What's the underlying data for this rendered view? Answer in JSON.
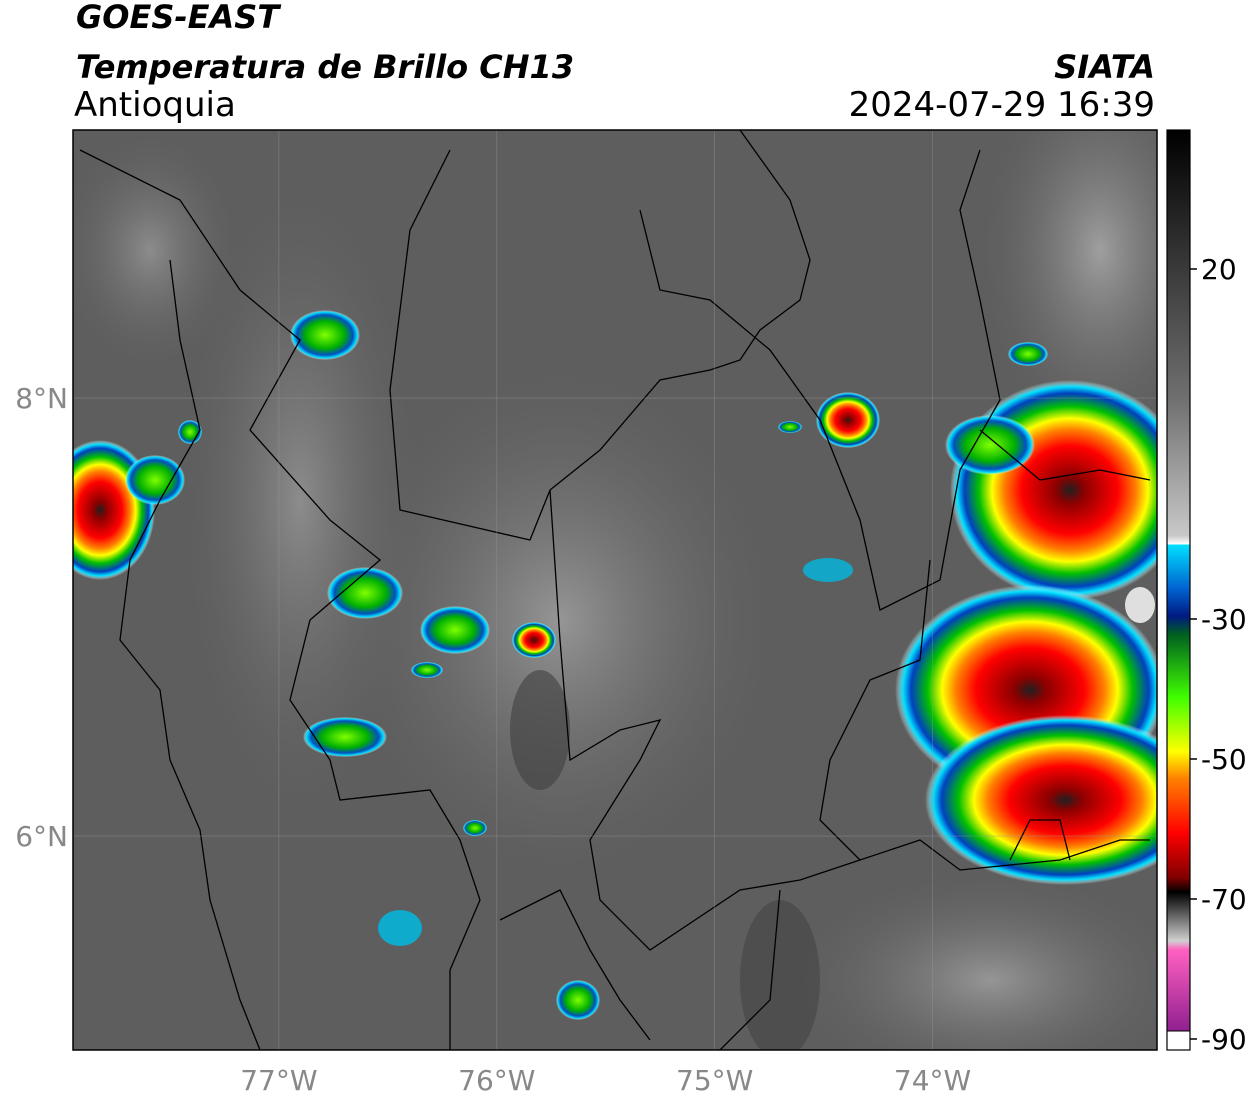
{
  "header": {
    "title": "GOES-EAST",
    "subtitle": "Temperatura de Brillo CH13",
    "region": "Antioquia",
    "source": "SIATA",
    "timestamp": "2024-07-29 16:39"
  },
  "map": {
    "lon_range": [
      -77.945,
      -72.97
    ],
    "lat_range": [
      5.023,
      9.224
    ],
    "lon_ticks": [
      {
        "value": -77,
        "label": "77°W"
      },
      {
        "value": -76,
        "label": "76°W"
      },
      {
        "value": -75,
        "label": "75°W"
      },
      {
        "value": -74,
        "label": "74°W"
      }
    ],
    "lat_ticks": [
      {
        "value": 8,
        "label": "8°N"
      },
      {
        "value": 6,
        "label": "6°N"
      }
    ]
  },
  "colorbar": {
    "range": [
      -90,
      40
    ],
    "ticks": [
      20,
      -30,
      -50,
      -70,
      -90
    ]
  }
}
